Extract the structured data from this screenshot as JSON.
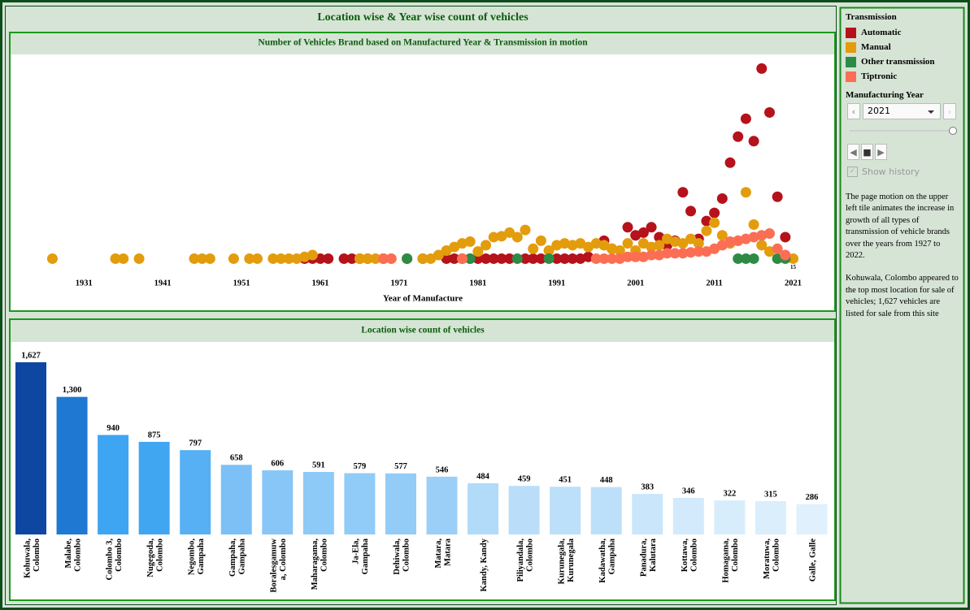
{
  "dashboard": {
    "title": "Location wise & Year wise count of vehicles"
  },
  "chart_data": [
    {
      "type": "scatter",
      "title": "Number of Vehicles Brand based on Manufactured Year & Transmission in motion",
      "x_label": "Year of Manufacture",
      "xlim": [
        1922,
        2026
      ],
      "xticks": [
        1931,
        1941,
        1951,
        1961,
        1971,
        1981,
        1991,
        2001,
        2011,
        2021
      ],
      "ylim": [
        0,
        240
      ],
      "series": [
        {
          "name": "Automatic",
          "color": "#b5121b",
          "x": [
            1959,
            1960,
            1961,
            1962,
            1964,
            1965,
            1966,
            1967,
            1969,
            1972,
            1974,
            1977,
            1978,
            1979,
            1980,
            1981,
            1982,
            1983,
            1984,
            1985,
            1987,
            1988,
            1989,
            1991,
            1992,
            1993,
            1994,
            1995,
            1997,
            1998,
            2000,
            2001,
            2002,
            2003,
            2004,
            2005,
            2006,
            2007,
            2008,
            2009,
            2010,
            2011,
            2012,
            2013,
            2014,
            2015,
            2016,
            2017,
            2018,
            2019,
            2020
          ],
          "values": [
            15,
            15,
            15,
            15,
            15,
            15,
            15,
            15,
            15,
            15,
            15,
            15,
            15,
            15,
            15,
            15,
            15,
            15,
            15,
            15,
            15,
            15,
            15,
            15,
            15,
            15,
            15,
            17,
            35,
            26,
            50,
            41,
            44,
            50,
            39,
            30,
            35,
            89,
            68,
            37,
            57,
            66,
            82,
            122,
            151,
            171,
            146,
            227,
            178,
            84,
            39
          ]
        },
        {
          "name": "Manual",
          "color": "#e39c0c",
          "label_last": true,
          "x": [
            1927,
            1935,
            1936,
            1938,
            1945,
            1946,
            1947,
            1950,
            1952,
            1953,
            1955,
            1956,
            1957,
            1958,
            1959,
            1960,
            1966,
            1967,
            1968,
            1969,
            1970,
            1972,
            1974,
            1975,
            1976,
            1977,
            1978,
            1979,
            1980,
            1981,
            1982,
            1983,
            1984,
            1985,
            1986,
            1987,
            1988,
            1989,
            1990,
            1991,
            1992,
            1993,
            1994,
            1995,
            1996,
            1997,
            1998,
            1999,
            2000,
            2001,
            2002,
            2003,
            2004,
            2005,
            2006,
            2007,
            2008,
            2009,
            2010,
            2011,
            2012,
            2013,
            2014,
            2015,
            2016,
            2017,
            2018,
            2019,
            2021
          ],
          "values": [
            15,
            15,
            15,
            15,
            15,
            15,
            15,
            15,
            15,
            15,
            15,
            15,
            15,
            15,
            17,
            19,
            15,
            15,
            15,
            15,
            15,
            15,
            15,
            15,
            19,
            24,
            28,
            32,
            34,
            23,
            30,
            39,
            40,
            44,
            39,
            47,
            26,
            35,
            24,
            30,
            32,
            30,
            32,
            28,
            32,
            30,
            26,
            24,
            32,
            24,
            32,
            28,
            30,
            37,
            34,
            32,
            37,
            32,
            46,
            55,
            41,
            32,
            35,
            89,
            53,
            30,
            23,
            15,
            15
          ]
        },
        {
          "name": "Other transmission",
          "color": "#2e8b45",
          "x": [
            1972,
            1979,
            1980,
            1986,
            1990,
            2014,
            2015,
            2016,
            2019,
            2020
          ],
          "values": [
            15,
            15,
            15,
            15,
            15,
            15,
            15,
            15,
            15,
            15
          ]
        },
        {
          "name": "Tiptronic",
          "color": "#fb6e54",
          "x": [
            1969,
            1970,
            1979,
            1996,
            1997,
            1998,
            1999,
            2000,
            2001,
            2002,
            2003,
            2004,
            2005,
            2006,
            2007,
            2008,
            2009,
            2010,
            2011,
            2012,
            2013,
            2014,
            2015,
            2016,
            2017,
            2018,
            2019,
            2020
          ],
          "values": [
            15,
            15,
            15,
            15,
            15,
            15,
            15,
            17,
            17,
            17,
            19,
            19,
            21,
            21,
            21,
            22,
            23,
            23,
            26,
            30,
            34,
            35,
            37,
            39,
            41,
            43,
            26,
            19
          ]
        }
      ]
    },
    {
      "type": "bar",
      "title": "Location wise count of vehicles",
      "categories": [
        "Kohuwala,\nColombo",
        "Malabe,\nColombo",
        "Colombo 3,\nColombo",
        "Nugegoda,\nColombo",
        "Negombo,\nGampaha",
        "Gampaha,\nGampaha",
        "Boralesgamuw\na, Colombo",
        "Maharagama,\nColombo",
        "Ja-Ela,\nGampaha",
        "Dehiwala,\nColombo",
        "Matara,\nMatara",
        "Kandy,  Kandy",
        "Piliyandala,\nColombo",
        "Kurunegala,\nKurunegala",
        "Kadawatha,\nGampaha",
        "Panadura,\nKalutara",
        "Kottawa,\nColombo",
        "Homagama,\nColombo",
        "Moratuwa,\nColombo",
        "Galle,  Galle"
      ],
      "values": [
        1627,
        1300,
        940,
        875,
        797,
        658,
        606,
        591,
        579,
        577,
        546,
        484,
        459,
        451,
        448,
        383,
        346,
        322,
        315,
        286
      ],
      "value_labels": [
        "1,627",
        "1,300",
        "940",
        "875",
        "797",
        "658",
        "606",
        "591",
        "579",
        "577",
        "546",
        "484",
        "459",
        "451",
        "448",
        "383",
        "346",
        "322",
        "315",
        "286"
      ],
      "colors": [
        "#0e47a1",
        "#1f78d1",
        "#3ea5f2",
        "#41a6f2",
        "#56b0f3",
        "#7cc0f6",
        "#88c6f7",
        "#8ecaf7",
        "#91cbf7",
        "#92ccf7",
        "#9ccff8",
        "#b2daf9",
        "#badefa",
        "#bcdffa",
        "#bde0fa",
        "#cae6fb",
        "#d3eafc",
        "#d8edfc",
        "#daeefc",
        "#e0f0fd"
      ],
      "ylim": [
        0,
        1700
      ]
    }
  ],
  "sidebar": {
    "legend_title": "Transmission",
    "filter_title": "Manufacturing Year",
    "selected_year": "2021",
    "show_history": "Show history",
    "notes": [
      "The page motion on the  upper left tile animates the increase in growth of all types of transmission of vehicle brands over the years from 1927 to 2022.",
      "Kohuwala,  Colombo appeared to the top most location for sale of vehicles;  1,627 vehicles are listed for sale from this site alone."
    ]
  }
}
